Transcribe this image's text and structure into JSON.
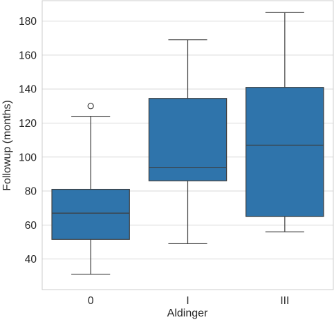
{
  "chart_data": {
    "type": "box",
    "xlabel": "Aldinger",
    "ylabel": "Followup (months)",
    "ylim": [
      22,
      192
    ],
    "yticks": [
      40,
      60,
      80,
      100,
      120,
      140,
      160,
      180
    ],
    "grid": true,
    "color": "#2f74ab",
    "categories": [
      "0",
      "I",
      "III"
    ],
    "boxes": [
      {
        "category": "0",
        "min": 31,
        "q1": 51.5,
        "median": 67,
        "q3": 81,
        "max": 124,
        "outliers": [
          130
        ]
      },
      {
        "category": "I",
        "min": 49,
        "q1": 86,
        "median": 94,
        "q3": 134.5,
        "max": 169,
        "outliers": []
      },
      {
        "category": "III",
        "min": 56,
        "q1": 65,
        "median": 107,
        "q3": 141,
        "max": 185,
        "outliers": []
      }
    ]
  }
}
